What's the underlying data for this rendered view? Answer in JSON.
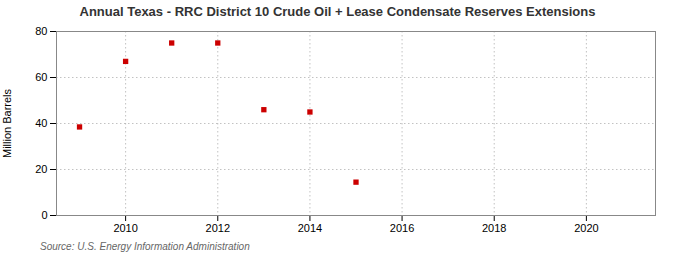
{
  "chart_data": {
    "type": "scatter",
    "title": "Annual Texas - RRC District 10 Crude Oil + Lease Condensate Reserves Extensions",
    "ylabel": "Million Barrels",
    "source": "Source: U.S. Energy Information Administration",
    "x": [
      2009,
      2010,
      2011,
      2012,
      2013,
      2014,
      2015
    ],
    "values": [
      38.5,
      67.0,
      75.0,
      75.0,
      46.0,
      45.0,
      14.5
    ],
    "color": "#cc0000",
    "marker": "square",
    "xlim": [
      2008.5,
      2021.5
    ],
    "ylim": [
      0,
      80
    ],
    "xticks": [
      2010,
      2012,
      2014,
      2016,
      2018,
      2020
    ],
    "yticks": [
      0,
      20,
      40,
      60,
      80
    ],
    "grid": true
  }
}
